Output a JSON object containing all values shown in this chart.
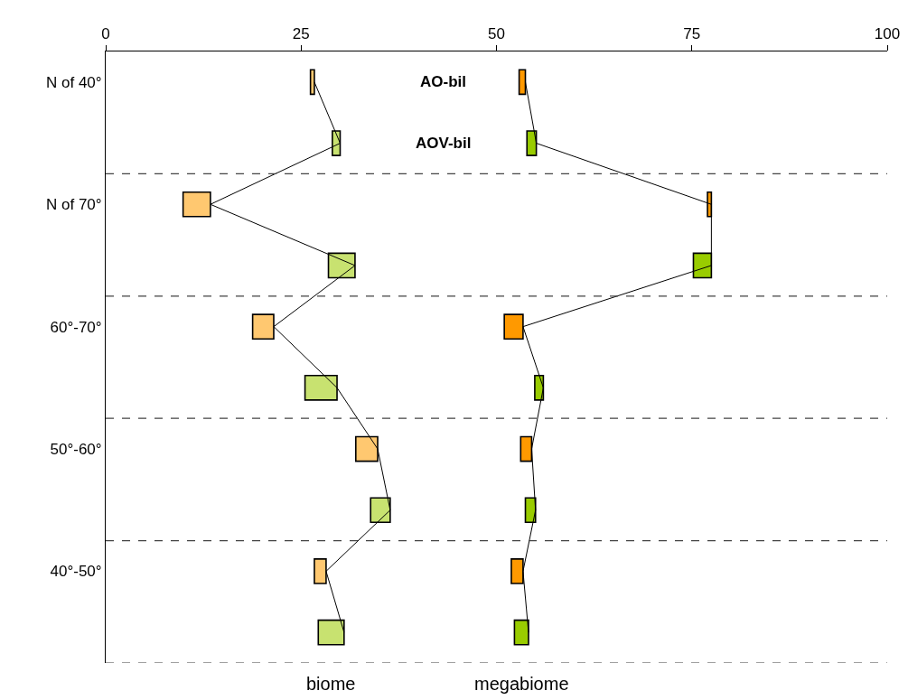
{
  "chart_data": {
    "type": "bar",
    "orientation": "horizontal",
    "categories": [
      "N of 40°",
      null,
      "N of 70°",
      null,
      "60°-70°",
      null,
      "50°-60°",
      null,
      "40°-50°",
      null
    ],
    "series": [
      {
        "color": "#ffc870",
        "base": [
          26.2,
          null,
          9.9,
          null,
          18.8,
          null,
          32.0,
          null,
          26.7,
          null
        ],
        "values": [
          0.5,
          null,
          3.5,
          null,
          2.7,
          null,
          2.8,
          null,
          1.5,
          null
        ]
      },
      {
        "color": "#c8e270",
        "base": [
          null,
          29.0,
          null,
          28.5,
          null,
          25.5,
          null,
          33.9,
          null,
          27.2
        ],
        "values": [
          null,
          1.0,
          null,
          3.4,
          null,
          4.1,
          null,
          2.5,
          null,
          3.3
        ]
      },
      {
        "color": "#ff9900",
        "base": [
          52.9,
          null,
          77.0,
          null,
          51.0,
          null,
          53.1,
          null,
          51.9,
          null
        ],
        "values": [
          0.8,
          null,
          0.5,
          null,
          2.4,
          null,
          1.4,
          null,
          1.5,
          null
        ]
      },
      {
        "color": "#99cc00",
        "base": [
          null,
          53.9,
          null,
          75.2,
          null,
          54.9,
          null,
          53.7,
          null,
          52.3
        ],
        "values": [
          null,
          1.2,
          null,
          2.3,
          null,
          1.1,
          null,
          1.3,
          null,
          1.8
        ]
      },
      {
        "type": "line",
        "color": "#000000",
        "values": [
          26.7,
          30.0,
          13.4,
          31.9,
          21.5,
          29.6,
          34.8,
          36.4,
          28.2,
          30.5
        ]
      },
      {
        "type": "line",
        "color": "#000000",
        "values": [
          53.7,
          55.1,
          77.5,
          77.5,
          53.4,
          56.0,
          54.5,
          55.0,
          53.4,
          54.1
        ]
      }
    ],
    "xlim": [
      0,
      100
    ],
    "xticks": [
      0,
      25,
      50,
      75,
      100
    ],
    "grid": "y",
    "marker": "none",
    "line_style": "solid",
    "annotations": [
      "AO-bil",
      "AOV-bil",
      "biome",
      "megabiome"
    ]
  }
}
